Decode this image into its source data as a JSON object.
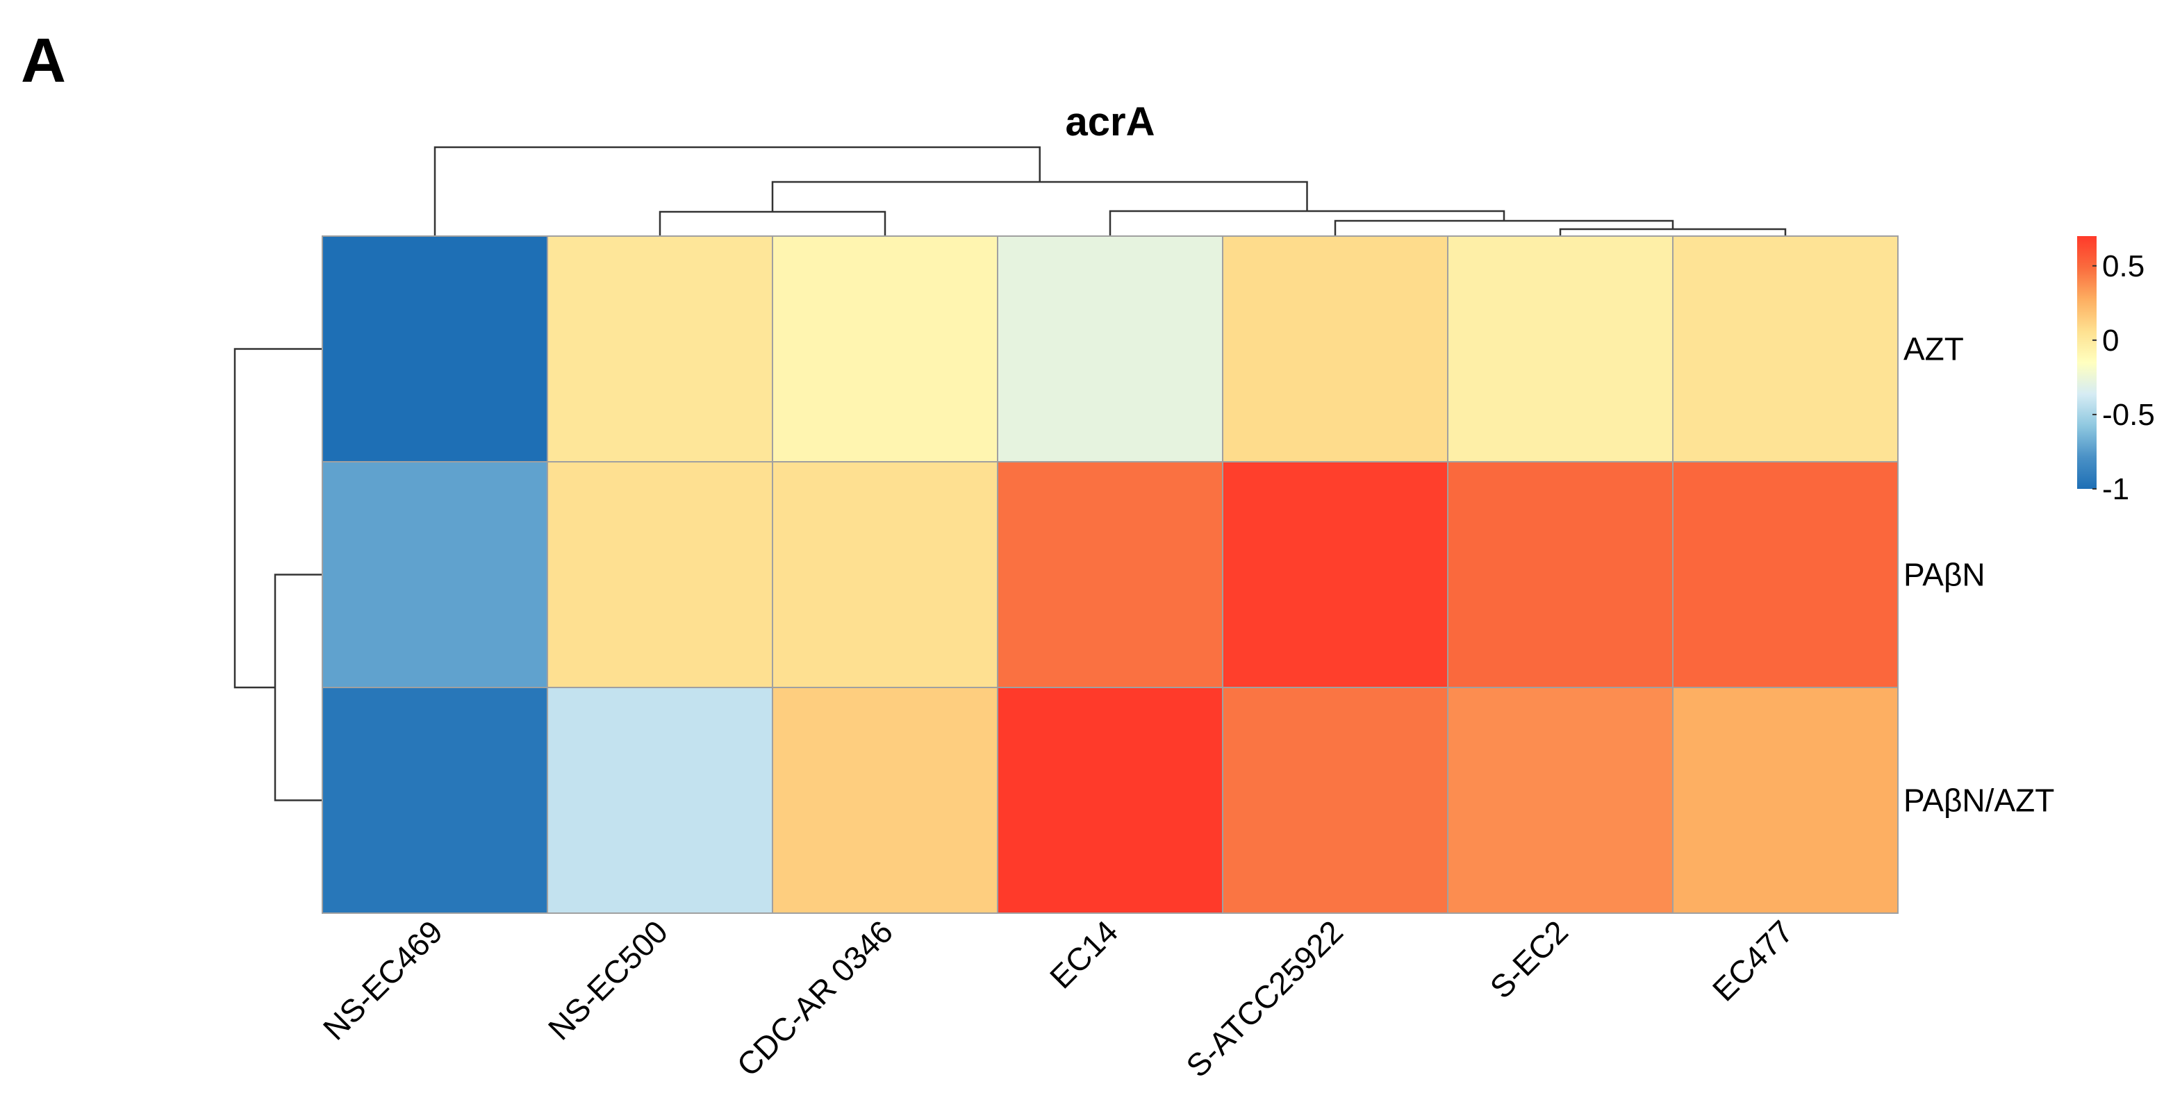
{
  "panel_label": "A",
  "chart_data": {
    "type": "heatmap",
    "title": "acrA",
    "columns": [
      "NS-EC469",
      "NS-EC500",
      "CDC-AR 0346",
      "EC14",
      "S-ATCC25922",
      "S-EC2",
      "EC477"
    ],
    "rows": [
      "AZT",
      "PAβN",
      "PAβN/AZT"
    ],
    "values": [
      [
        -1.0,
        0.02,
        -0.08,
        -0.28,
        0.08,
        -0.04,
        0.04
      ],
      [
        -0.72,
        0.06,
        0.06,
        0.47,
        0.68,
        0.5,
        0.51
      ],
      [
        -0.95,
        -0.42,
        0.14,
        0.7,
        0.46,
        0.38,
        0.27
      ]
    ],
    "color_scale": {
      "min": -1.0,
      "max": 0.7,
      "ticks": [
        "0.5",
        "0",
        "-0.5",
        "-1"
      ],
      "tick_values": [
        0.5,
        0,
        -0.5,
        -1
      ],
      "colors": [
        "#1e6fb5",
        "#4a91c6",
        "#8fc8e0",
        "#d6ecf4",
        "#ffffbf",
        "#fee090",
        "#fdae61",
        "#fa6c3e",
        "#ff3a2a"
      ]
    },
    "column_dendrogram": "((NS-EC469),((NS-EC500,CDC-AR 0346),(EC14,(S-ATCC25922,(S-EC2,EC477)))))",
    "row_dendrogram": "(AZT,(PAβN,PAβN/AZT))"
  }
}
